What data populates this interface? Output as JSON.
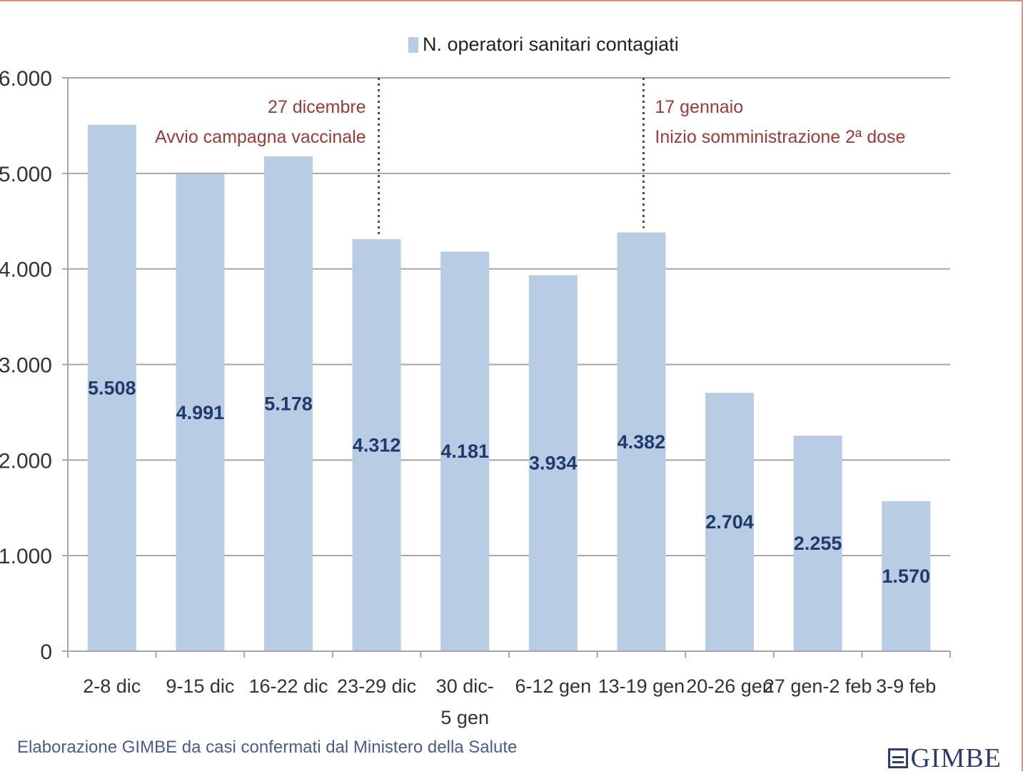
{
  "chart_data": {
    "type": "bar",
    "legend": "N. operatori sanitari contagiati",
    "legend_position": "top",
    "categories": [
      [
        "2-8 dic"
      ],
      [
        "9-15 dic"
      ],
      [
        "16-22 dic"
      ],
      [
        "23-29 dic"
      ],
      [
        "30 dic-",
        "5 gen"
      ],
      [
        "6-12 gen"
      ],
      [
        "13-19 gen"
      ],
      [
        "20-26 gen"
      ],
      [
        "27 gen-2 feb"
      ],
      [
        "3-9 feb"
      ]
    ],
    "values": [
      5508,
      4991,
      5178,
      4312,
      4181,
      3934,
      4382,
      2704,
      2255,
      1570
    ],
    "value_labels": [
      "5.508",
      "4.991",
      "5.178",
      "4.312",
      "4.181",
      "3.934",
      "4.382",
      "2.704",
      "2.255",
      "1.570"
    ],
    "ylim": [
      0,
      6000
    ],
    "yticks": [
      0,
      1000,
      2000,
      3000,
      4000,
      5000,
      6000
    ],
    "ytick_labels": [
      "0",
      "1.000",
      "2.000",
      "3.000",
      "4.000",
      "5.000",
      "6.000"
    ],
    "grid": true,
    "bar_color": "#b8cce4",
    "annotations": [
      {
        "between": [
          3,
          4
        ],
        "lines": [
          "27 dicembre",
          "Avvio campagna vaccinale"
        ],
        "align": "left-of-line",
        "color": "#9b3b33"
      },
      {
        "between": [
          6,
          7
        ],
        "lines": [
          "17 gennaio",
          "Inizio somministrazione 2ª dose"
        ],
        "align": "right-of-line",
        "color": "#9b3b33"
      }
    ]
  },
  "footer": {
    "source": "Elaborazione GIMBE da casi confermati dal Ministero della Salute",
    "logo": "GIMBE"
  }
}
